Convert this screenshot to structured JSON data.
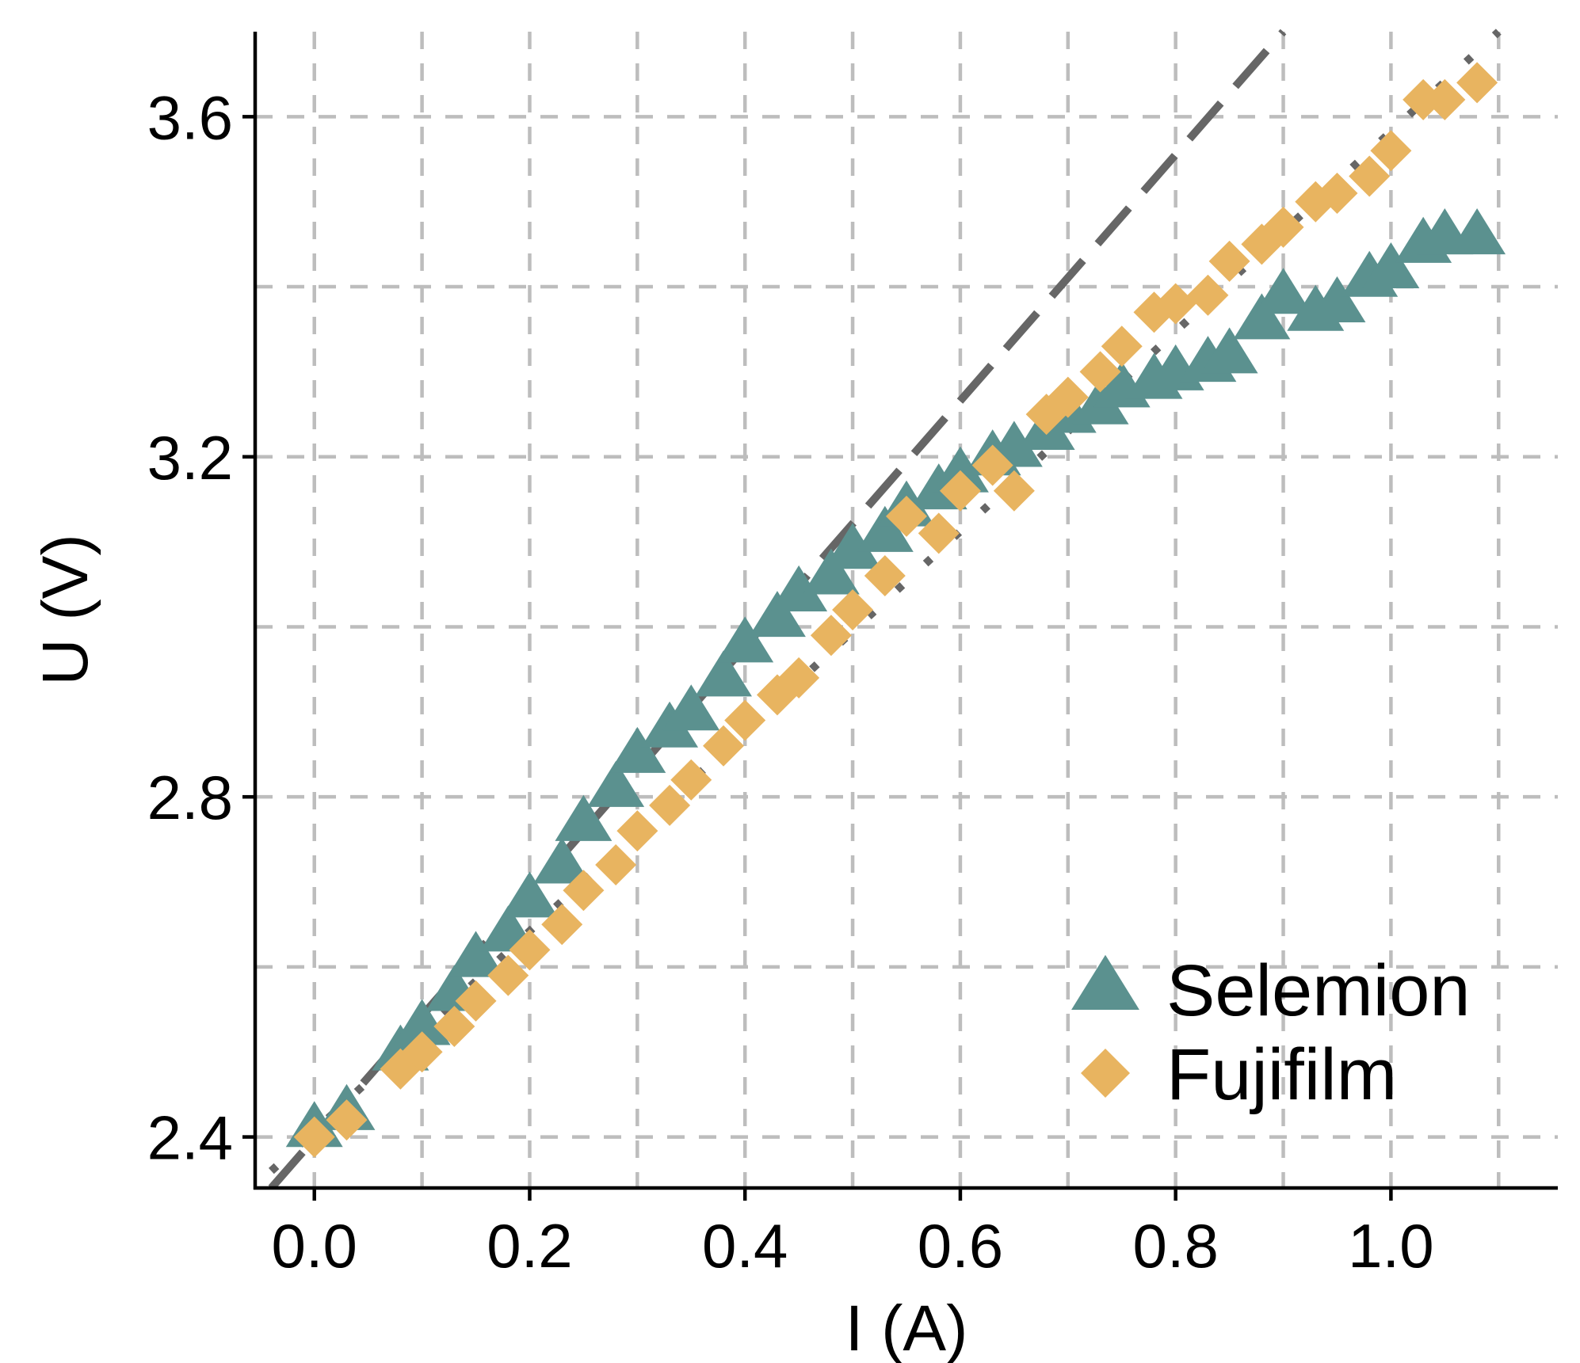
{
  "chart_data": {
    "type": "scatter",
    "title": "",
    "xlabel": "I (A)",
    "ylabel": "U (V)",
    "xlim": [
      -0.055,
      1.155
    ],
    "ylim": [
      2.34,
      3.7
    ],
    "xticks": [
      0.0,
      0.2,
      0.4,
      0.6,
      0.8,
      1.0
    ],
    "xtick_labels": [
      "0.0",
      "0.2",
      "0.4",
      "0.6",
      "0.8",
      "1.0"
    ],
    "yticks": [
      2.4,
      2.8,
      3.2,
      3.6
    ],
    "ytick_labels": [
      "2.4",
      "2.8",
      "3.2",
      "3.6"
    ],
    "x_grid": [
      0.0,
      0.1,
      0.2,
      0.3,
      0.4,
      0.5,
      0.6,
      0.7,
      0.8,
      0.9,
      1.0,
      1.1
    ],
    "y_grid": [
      2.4,
      2.6,
      2.8,
      3.0,
      3.2,
      3.4,
      3.6
    ],
    "grid": true,
    "legend_position": "bottom-right",
    "series": [
      {
        "name": "Selemion",
        "marker": "triangle",
        "color": "#5b918f",
        "points": [
          [
            0.0,
            2.41
          ],
          [
            0.03,
            2.43
          ],
          [
            0.08,
            2.5
          ],
          [
            0.1,
            2.53
          ],
          [
            0.13,
            2.57
          ],
          [
            0.15,
            2.61
          ],
          [
            0.18,
            2.64
          ],
          [
            0.2,
            2.68
          ],
          [
            0.23,
            2.72
          ],
          [
            0.25,
            2.77
          ],
          [
            0.28,
            2.81
          ],
          [
            0.3,
            2.85
          ],
          [
            0.33,
            2.88
          ],
          [
            0.35,
            2.9
          ],
          [
            0.38,
            2.94
          ],
          [
            0.4,
            2.98
          ],
          [
            0.43,
            3.01
          ],
          [
            0.45,
            3.04
          ],
          [
            0.48,
            3.06
          ],
          [
            0.5,
            3.09
          ],
          [
            0.53,
            3.11
          ],
          [
            0.55,
            3.14
          ],
          [
            0.58,
            3.16
          ],
          [
            0.6,
            3.18
          ],
          [
            0.63,
            3.2
          ],
          [
            0.65,
            3.21
          ],
          [
            0.68,
            3.23
          ],
          [
            0.7,
            3.25
          ],
          [
            0.73,
            3.26
          ],
          [
            0.75,
            3.28
          ],
          [
            0.78,
            3.29
          ],
          [
            0.8,
            3.3
          ],
          [
            0.83,
            3.31
          ],
          [
            0.85,
            3.32
          ],
          [
            0.88,
            3.36
          ],
          [
            0.9,
            3.39
          ],
          [
            0.93,
            3.37
          ],
          [
            0.95,
            3.38
          ],
          [
            0.98,
            3.41
          ],
          [
            1.0,
            3.42
          ],
          [
            1.03,
            3.45
          ],
          [
            1.05,
            3.46
          ],
          [
            1.08,
            3.46
          ]
        ]
      },
      {
        "name": "Fujifilm",
        "marker": "diamond",
        "color": "#e8b460",
        "points": [
          [
            0.0,
            2.4
          ],
          [
            0.03,
            2.42
          ],
          [
            0.08,
            2.48
          ],
          [
            0.1,
            2.5
          ],
          [
            0.13,
            2.53
          ],
          [
            0.15,
            2.56
          ],
          [
            0.18,
            2.59
          ],
          [
            0.2,
            2.62
          ],
          [
            0.23,
            2.65
          ],
          [
            0.25,
            2.69
          ],
          [
            0.28,
            2.72
          ],
          [
            0.3,
            2.76
          ],
          [
            0.33,
            2.79
          ],
          [
            0.35,
            2.82
          ],
          [
            0.38,
            2.86
          ],
          [
            0.4,
            2.89
          ],
          [
            0.43,
            2.92
          ],
          [
            0.45,
            2.94
          ],
          [
            0.48,
            2.99
          ],
          [
            0.5,
            3.02
          ],
          [
            0.53,
            3.06
          ],
          [
            0.55,
            3.13
          ],
          [
            0.58,
            3.11
          ],
          [
            0.6,
            3.16
          ],
          [
            0.63,
            3.19
          ],
          [
            0.65,
            3.16
          ],
          [
            0.68,
            3.25
          ],
          [
            0.7,
            3.27
          ],
          [
            0.73,
            3.3
          ],
          [
            0.75,
            3.33
          ],
          [
            0.78,
            3.37
          ],
          [
            0.8,
            3.38
          ],
          [
            0.83,
            3.39
          ],
          [
            0.85,
            3.43
          ],
          [
            0.88,
            3.45
          ],
          [
            0.9,
            3.47
          ],
          [
            0.93,
            3.5
          ],
          [
            0.95,
            3.51
          ],
          [
            0.98,
            3.53
          ],
          [
            1.0,
            3.56
          ],
          [
            1.03,
            3.62
          ],
          [
            1.05,
            3.62
          ],
          [
            1.08,
            3.64
          ]
        ]
      }
    ],
    "reference_lines": [
      {
        "name": "dashed-fit-line",
        "style": "dashed",
        "color": "#666666",
        "points": [
          [
            -0.04,
            2.34
          ],
          [
            0.9,
            3.7
          ]
        ]
      },
      {
        "name": "dotted-fit-line",
        "style": "dotted",
        "color": "#666666",
        "points": [
          [
            -0.04,
            2.36
          ],
          [
            1.1,
            3.7
          ]
        ]
      }
    ]
  }
}
